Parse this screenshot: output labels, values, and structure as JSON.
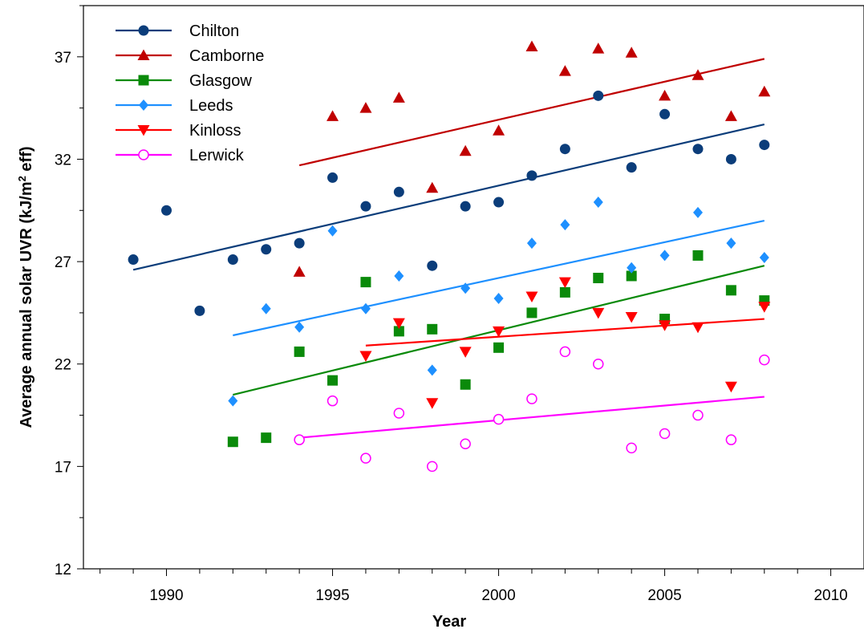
{
  "chart_data": {
    "type": "scatter",
    "xlabel": "Year",
    "ylabel_main": "Average annual solar UVR (kJ/m",
    "ylabel_sup": "2",
    "ylabel_tail": " eff)",
    "xlim": [
      1987.5,
      2011
    ],
    "ylim": [
      12,
      39.5
    ],
    "xticks": [
      1990,
      1995,
      2000,
      2005,
      2010
    ],
    "yticks": [
      12,
      17,
      22,
      27,
      32,
      37
    ],
    "grid": false,
    "legend_position": "top-left",
    "series": [
      {
        "name": "Chilton",
        "color": "#0b3d7a",
        "marker": "circle",
        "points": [
          [
            1989,
            27.1
          ],
          [
            1990,
            29.5
          ],
          [
            1991,
            24.6
          ],
          [
            1992,
            27.1
          ],
          [
            1993,
            27.6
          ],
          [
            1994,
            27.9
          ],
          [
            1995,
            31.1
          ],
          [
            1996,
            29.7
          ],
          [
            1997,
            30.4
          ],
          [
            1998,
            26.8
          ],
          [
            1999,
            29.7
          ],
          [
            2000,
            29.9
          ],
          [
            2001,
            31.2
          ],
          [
            2002,
            32.5
          ],
          [
            2003,
            35.1
          ],
          [
            2004,
            31.6
          ],
          [
            2005,
            34.2
          ],
          [
            2006,
            32.5
          ],
          [
            2007,
            32.0
          ],
          [
            2008,
            32.7
          ]
        ],
        "trend": [
          [
            1989,
            26.6
          ],
          [
            2008,
            33.7
          ]
        ]
      },
      {
        "name": "Camborne",
        "color": "#c00000",
        "marker": "triangle-up",
        "points": [
          [
            1994,
            26.5
          ],
          [
            1995,
            34.1
          ],
          [
            1996,
            34.5
          ],
          [
            1997,
            35.0
          ],
          [
            1998,
            30.6
          ],
          [
            1999,
            32.4
          ],
          [
            2000,
            33.4
          ],
          [
            2001,
            37.5
          ],
          [
            2002,
            36.3
          ],
          [
            2003,
            37.4
          ],
          [
            2004,
            37.2
          ],
          [
            2005,
            35.1
          ],
          [
            2006,
            36.1
          ],
          [
            2007,
            34.1
          ],
          [
            2008,
            35.3
          ]
        ],
        "trend": [
          [
            1994,
            31.7
          ],
          [
            2008,
            36.9
          ]
        ]
      },
      {
        "name": "Glasgow",
        "color": "#0a8a0a",
        "marker": "square",
        "points": [
          [
            1992,
            18.2
          ],
          [
            1993,
            18.4
          ],
          [
            1994,
            22.6
          ],
          [
            1995,
            21.2
          ],
          [
            1996,
            26.0
          ],
          [
            1997,
            23.6
          ],
          [
            1998,
            23.7
          ],
          [
            1999,
            21.0
          ],
          [
            2000,
            22.8
          ],
          [
            2001,
            24.5
          ],
          [
            2002,
            25.5
          ],
          [
            2003,
            26.2
          ],
          [
            2004,
            26.3
          ],
          [
            2005,
            24.2
          ],
          [
            2006,
            27.3
          ],
          [
            2007,
            25.6
          ],
          [
            2008,
            25.1
          ]
        ],
        "trend": [
          [
            1992,
            20.5
          ],
          [
            2008,
            26.8
          ]
        ]
      },
      {
        "name": "Leeds",
        "color": "#1e90ff",
        "marker": "diamond",
        "points": [
          [
            1992,
            20.2
          ],
          [
            1993,
            24.7
          ],
          [
            1994,
            23.8
          ],
          [
            1995,
            28.5
          ],
          [
            1996,
            24.7
          ],
          [
            1997,
            26.3
          ],
          [
            1998,
            21.7
          ],
          [
            1999,
            25.7
          ],
          [
            2000,
            25.2
          ],
          [
            2001,
            27.9
          ],
          [
            2002,
            28.8
          ],
          [
            2003,
            29.9
          ],
          [
            2004,
            26.7
          ],
          [
            2005,
            27.3
          ],
          [
            2006,
            29.4
          ],
          [
            2007,
            27.9
          ],
          [
            2008,
            27.2
          ]
        ],
        "trend": [
          [
            1992,
            23.4
          ],
          [
            2008,
            29.0
          ]
        ]
      },
      {
        "name": "Kinloss",
        "color": "#ff0000",
        "marker": "triangle-down",
        "points": [
          [
            1996,
            22.4
          ],
          [
            1997,
            24.0
          ],
          [
            1998,
            20.1
          ],
          [
            1999,
            22.6
          ],
          [
            2000,
            23.6
          ],
          [
            2001,
            25.3
          ],
          [
            2002,
            26.0
          ],
          [
            2003,
            24.5
          ],
          [
            2004,
            24.3
          ],
          [
            2005,
            23.9
          ],
          [
            2006,
            23.8
          ],
          [
            2007,
            20.9
          ],
          [
            2008,
            24.8
          ]
        ],
        "trend": [
          [
            1996,
            22.9
          ],
          [
            2008,
            24.2
          ]
        ]
      },
      {
        "name": "Lerwick",
        "color": "#ff00ff",
        "marker": "circle-open",
        "points": [
          [
            1994,
            18.3
          ],
          [
            1995,
            20.2
          ],
          [
            1996,
            17.4
          ],
          [
            1997,
            19.6
          ],
          [
            1998,
            17.0
          ],
          [
            1999,
            18.1
          ],
          [
            2000,
            19.3
          ],
          [
            2001,
            20.3
          ],
          [
            2002,
            22.6
          ],
          [
            2003,
            22.0
          ],
          [
            2004,
            17.9
          ],
          [
            2005,
            18.6
          ],
          [
            2006,
            19.5
          ],
          [
            2007,
            18.3
          ],
          [
            2008,
            22.2
          ]
        ],
        "trend": [
          [
            1994,
            18.4
          ],
          [
            2008,
            20.4
          ]
        ]
      }
    ]
  }
}
